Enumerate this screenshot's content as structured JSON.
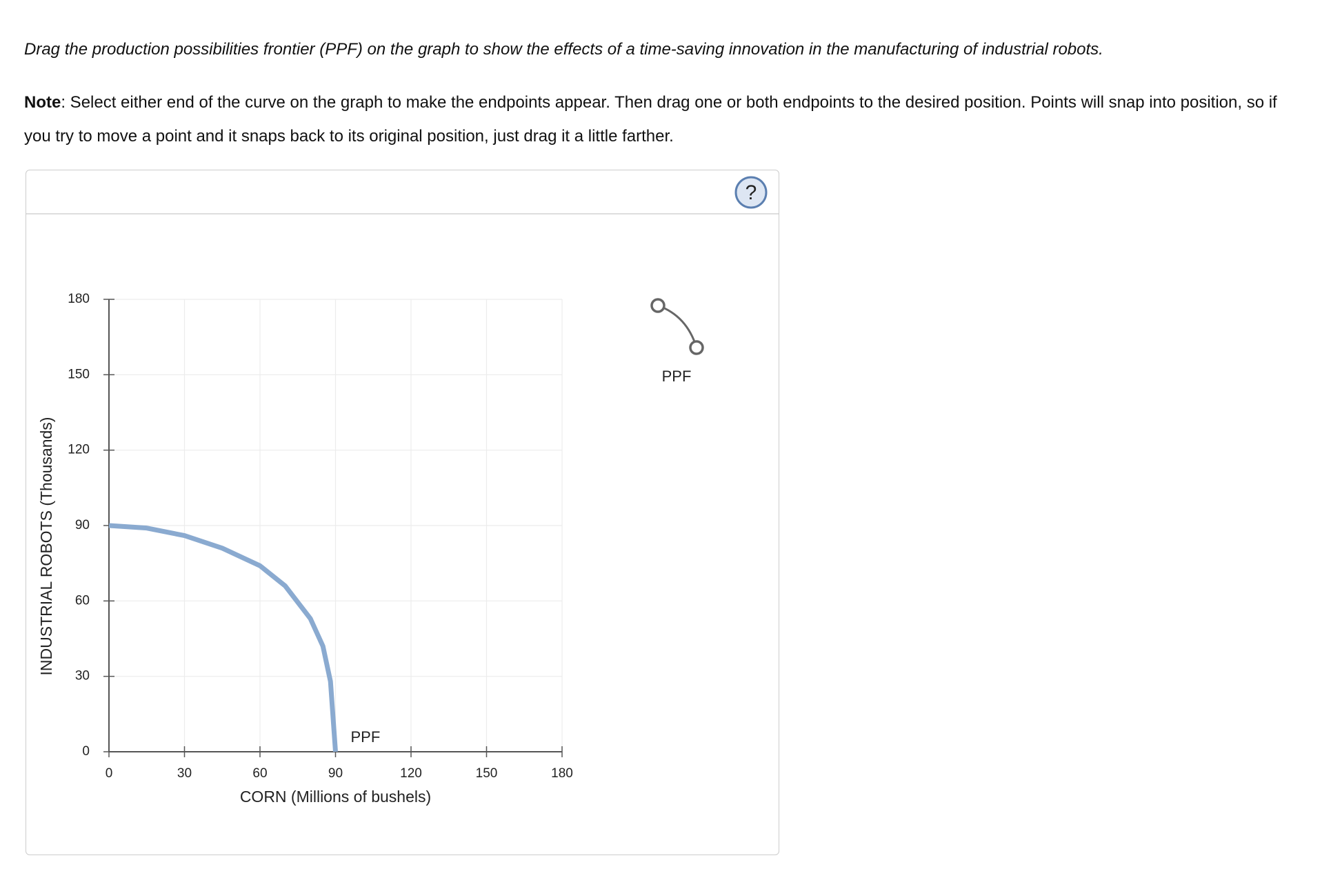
{
  "instructions": "Drag the production possibilities frontier (PPF) on the graph to show the effects of a time-saving innovation in the manufacturing of industrial robots.",
  "note_label": "Note",
  "note_text": ": Select either end of the curve on the graph to make the endpoints appear. Then drag one or both endpoints to the desired position. Points will snap into position, so if you try to move a point and it snaps back to its original position, just drag it a little farther.",
  "palette": {
    "label": "PPF"
  },
  "chart_data": {
    "type": "line",
    "xlabel": "CORN (Millions of bushels)",
    "ylabel": "INDUSTRIAL ROBOTS (Thousands)",
    "x": [
      0,
      15,
      30,
      45,
      60,
      70,
      80,
      85,
      88,
      90
    ],
    "series": [
      {
        "name": "PPF",
        "color": "#8aaad0",
        "values": [
          90,
          89,
          86,
          81,
          74,
          66,
          53,
          42,
          28,
          0
        ]
      }
    ],
    "xlim": [
      0,
      180
    ],
    "ylim": [
      0,
      180
    ],
    "xticks": [
      0,
      30,
      60,
      90,
      120,
      150,
      180
    ],
    "yticks": [
      0,
      30,
      60,
      90,
      120,
      150,
      180
    ],
    "grid": true
  }
}
